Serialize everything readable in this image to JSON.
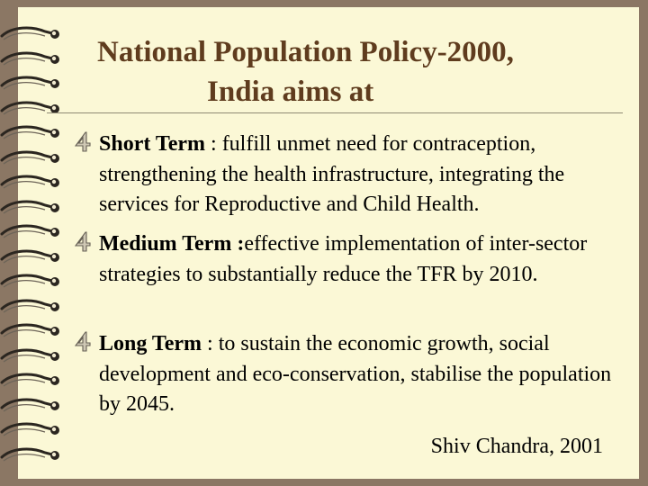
{
  "title": {
    "line1": "National Population Policy-2000,",
    "line2": "India aims at"
  },
  "bullets": [
    {
      "icon": "four-marker-icon",
      "term": "Short Term",
      "separator": " : ",
      "text": "fulfill unmet need for contraception, strengthening the health infrastructure, integrating the services for Reproductive and Child Health."
    },
    {
      "icon": "four-marker-icon",
      "term": "Medium Term :",
      "separator": "",
      "text": "effective implementation of inter-sector  strategies to substantially reduce the TFR by 2010."
    },
    {
      "icon": "four-marker-icon",
      "term": "Long Term",
      "separator": " : ",
      "text": "to sustain the economic growth, social development and eco-conservation, stabilise the population by 2045."
    }
  ],
  "signature": "Shiv Chandra, 2001",
  "colors": {
    "background": "#8b7764",
    "page": "#fbf8d6",
    "title": "#5f3c1e",
    "text": "#000000",
    "ring": "#2b2620",
    "hole": "#f1ead0"
  }
}
